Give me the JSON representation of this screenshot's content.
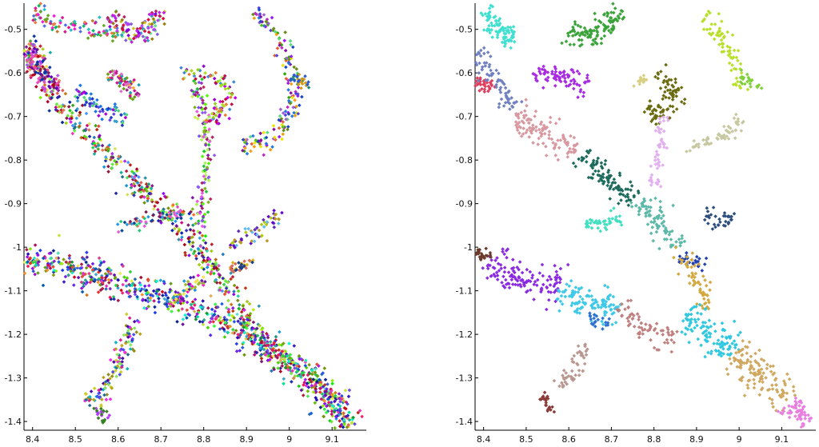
{
  "chart_data": [
    {
      "type": "scatter",
      "title": "",
      "xlabel": "",
      "ylabel": "",
      "xlim": [
        8.38,
        9.18
      ],
      "ylim": [
        -1.42,
        -0.44
      ],
      "x_ticks": [
        8.4,
        8.5,
        8.6,
        8.7,
        8.8,
        8.9,
        9.0,
        9.1
      ],
      "x_tick_labels": [
        "8.4",
        "8.5",
        "8.6",
        "8.7",
        "8.8",
        "8.9",
        "9",
        "9.1"
      ],
      "y_ticks": [
        -0.5,
        -0.6,
        -0.7,
        -0.8,
        -0.9,
        -1.0,
        -1.1,
        -1.2,
        -1.3,
        -1.4
      ],
      "y_tick_labels": [
        "-0.5",
        "-0.6",
        "-0.7",
        "-0.8",
        "-0.9",
        "-1",
        "-1.1",
        "-1.2",
        "-1.3",
        "-1.4"
      ],
      "grid": false,
      "legend": "none",
      "marker": "diamond",
      "coloring": "many small clusters, random distinct colors",
      "point_count": 2600,
      "structure_paths": [
        {
          "points": [
            [
              8.38,
              -0.52
            ],
            [
              8.45,
              -0.66
            ],
            [
              8.55,
              -0.76
            ],
            [
              8.65,
              -0.86
            ],
            [
              8.74,
              -0.94
            ],
            [
              8.8,
              -1.02
            ],
            [
              8.86,
              -1.1
            ],
            [
              8.9,
              -1.18
            ],
            [
              8.97,
              -1.25
            ],
            [
              9.05,
              -1.3
            ],
            [
              9.1,
              -1.36
            ],
            [
              9.14,
              -1.41
            ]
          ],
          "width": 0.014,
          "weight": 3.0
        },
        {
          "points": [
            [
              8.38,
              -1.03
            ],
            [
              8.5,
              -1.05
            ],
            [
              8.62,
              -1.09
            ],
            [
              8.72,
              -1.12
            ],
            [
              8.82,
              -1.16
            ],
            [
              8.92,
              -1.21
            ],
            [
              9.0,
              -1.26
            ],
            [
              9.08,
              -1.33
            ],
            [
              9.15,
              -1.41
            ]
          ],
          "width": 0.018,
          "weight": 3.0
        },
        {
          "points": [
            [
              8.38,
              -0.54
            ],
            [
              8.42,
              -0.6
            ],
            [
              8.46,
              -0.64
            ]
          ],
          "width": 0.012,
          "weight": 0.5
        },
        {
          "points": [
            [
              8.4,
              -0.46
            ],
            [
              8.46,
              -0.49
            ],
            [
              8.55,
              -0.5
            ],
            [
              8.6,
              -0.51
            ]
          ],
          "width": 0.01,
          "weight": 0.4
        },
        {
          "points": [
            [
              8.58,
              -0.47
            ],
            [
              8.62,
              -0.5
            ],
            [
              8.65,
              -0.52
            ],
            [
              8.7,
              -0.46
            ]
          ],
          "width": 0.012,
          "weight": 0.5
        },
        {
          "points": [
            [
              8.78,
              -0.61
            ],
            [
              8.8,
              -0.7
            ],
            [
              8.81,
              -0.8
            ],
            [
              8.8,
              -0.88
            ],
            [
              8.79,
              -0.96
            ]
          ],
          "width": 0.008,
          "weight": 0.6
        },
        {
          "points": [
            [
              8.75,
              -0.6
            ],
            [
              8.82,
              -0.6
            ],
            [
              8.86,
              -0.64
            ],
            [
              8.84,
              -0.7
            ],
            [
              8.8,
              -0.7
            ]
          ],
          "width": 0.01,
          "weight": 0.4
        },
        {
          "points": [
            [
              8.92,
              -0.46
            ],
            [
              8.97,
              -0.5
            ],
            [
              9.0,
              -0.58
            ],
            [
              9.01,
              -0.66
            ],
            [
              8.99,
              -0.72
            ],
            [
              8.96,
              -0.75
            ],
            [
              8.89,
              -0.77
            ]
          ],
          "width": 0.01,
          "weight": 0.7
        },
        {
          "points": [
            [
              9.0,
              -0.61
            ],
            [
              9.05,
              -0.63
            ]
          ],
          "width": 0.006,
          "weight": 0.15
        },
        {
          "points": [
            [
              8.58,
              -0.6
            ],
            [
              8.62,
              -0.62
            ],
            [
              8.64,
              -0.66
            ]
          ],
          "width": 0.008,
          "weight": 0.3
        },
        {
          "points": [
            [
              8.5,
              -0.64
            ],
            [
              8.55,
              -0.68
            ],
            [
              8.62,
              -0.7
            ]
          ],
          "width": 0.01,
          "weight": 0.3
        },
        {
          "points": [
            [
              8.6,
              -0.96
            ],
            [
              8.65,
              -0.94
            ],
            [
              8.72,
              -0.92
            ],
            [
              8.78,
              -0.93
            ]
          ],
          "width": 0.008,
          "weight": 0.3
        },
        {
          "points": [
            [
              8.86,
              -1.0
            ],
            [
              8.9,
              -0.98
            ],
            [
              8.95,
              -0.95
            ],
            [
              8.98,
              -0.92
            ]
          ],
          "width": 0.008,
          "weight": 0.25
        },
        {
          "points": [
            [
              8.86,
              -1.05
            ],
            [
              8.9,
              -1.04
            ],
            [
              8.92,
              -1.03
            ]
          ],
          "width": 0.006,
          "weight": 0.15
        },
        {
          "points": [
            [
              8.72,
              -1.13
            ],
            [
              8.76,
              -1.1
            ],
            [
              8.8,
              -1.07
            ]
          ],
          "width": 0.008,
          "weight": 0.25
        },
        {
          "points": [
            [
              8.64,
              -1.16
            ],
            [
              8.62,
              -1.22
            ],
            [
              8.6,
              -1.28
            ],
            [
              8.56,
              -1.34
            ],
            [
              8.52,
              -1.35
            ]
          ],
          "width": 0.01,
          "weight": 0.5
        },
        {
          "points": [
            [
              8.55,
              -1.37
            ],
            [
              8.57,
              -1.4
            ]
          ],
          "width": 0.005,
          "weight": 0.1
        }
      ]
    },
    {
      "type": "scatter",
      "title": "",
      "xlabel": "",
      "ylabel": "",
      "xlim": [
        8.38,
        9.18
      ],
      "ylim": [
        -1.42,
        -0.44
      ],
      "x_ticks": [
        8.4,
        8.5,
        8.6,
        8.7,
        8.8,
        8.9,
        9.0,
        9.1
      ],
      "x_tick_labels": [
        "8.4",
        "8.5",
        "8.6",
        "8.7",
        "8.8",
        "8.9",
        "9",
        "9.1"
      ],
      "y_ticks": [
        -0.5,
        -0.6,
        -0.7,
        -0.8,
        -0.9,
        -1.0,
        -1.1,
        -1.2,
        -1.3,
        -1.4
      ],
      "y_tick_labels": [
        "-0.5",
        "-0.6",
        "-0.7",
        "-0.8",
        "-0.9",
        "-1",
        "-1.1",
        "-1.2",
        "-1.3",
        "-1.4"
      ],
      "grid": false,
      "legend": "none",
      "marker": "diamond",
      "coloring": "few large clusters",
      "clusters": [
        {
          "color": "#40e0d0",
          "points": [
            [
              8.4,
              -0.46
            ],
            [
              8.43,
              -0.5
            ],
            [
              8.48,
              -0.53
            ]
          ],
          "width": 0.012,
          "weight": 0.6
        },
        {
          "color": "#3aa33a",
          "points": [
            [
              8.6,
              -0.5
            ],
            [
              8.64,
              -0.52
            ],
            [
              8.68,
              -0.5
            ],
            [
              8.72,
              -0.46
            ]
          ],
          "width": 0.014,
          "weight": 0.8
        },
        {
          "color": "#b8e02a",
          "points": [
            [
              8.92,
              -0.46
            ],
            [
              8.96,
              -0.52
            ],
            [
              8.99,
              -0.58
            ],
            [
              9.0,
              -0.64
            ]
          ],
          "width": 0.01,
          "weight": 0.5
        },
        {
          "color": "#7fd03a",
          "points": [
            [
              9.0,
              -0.61
            ],
            [
              9.05,
              -0.63
            ]
          ],
          "width": 0.007,
          "weight": 0.15
        },
        {
          "color": "#c7c7a0",
          "points": [
            [
              9.0,
              -0.7
            ],
            [
              8.98,
              -0.74
            ],
            [
              8.93,
              -0.76
            ],
            [
              8.88,
              -0.77
            ]
          ],
          "width": 0.008,
          "weight": 0.4
        },
        {
          "color": "#6b6b10",
          "points": [
            [
              8.8,
              -0.6
            ],
            [
              8.83,
              -0.61
            ],
            [
              8.85,
              -0.65
            ],
            [
              8.82,
              -0.7
            ],
            [
              8.78,
              -0.68
            ]
          ],
          "width": 0.012,
          "weight": 0.6
        },
        {
          "color": "#d8d080",
          "points": [
            [
              8.76,
              -0.61
            ],
            [
              8.78,
              -0.62
            ]
          ],
          "width": 0.006,
          "weight": 0.1
        },
        {
          "color": "#e2b0f0",
          "points": [
            [
              8.82,
              -0.7
            ],
            [
              8.81,
              -0.8
            ],
            [
              8.8,
              -0.86
            ]
          ],
          "width": 0.007,
          "weight": 0.35
        },
        {
          "color": "#a82be2",
          "points": [
            [
              8.52,
              -0.61
            ],
            [
              8.58,
              -0.6
            ],
            [
              8.64,
              -0.63
            ]
          ],
          "width": 0.012,
          "weight": 0.6
        },
        {
          "color": "#e04060",
          "points": [
            [
              8.38,
              -0.62
            ],
            [
              8.42,
              -0.63
            ]
          ],
          "width": 0.008,
          "weight": 0.25
        },
        {
          "color": "#7080c0",
          "points": [
            [
              8.38,
              -0.55
            ],
            [
              8.43,
              -0.62
            ],
            [
              8.47,
              -0.68
            ]
          ],
          "width": 0.012,
          "weight": 0.5
        },
        {
          "color": "#d898a0",
          "points": [
            [
              8.47,
              -0.7
            ],
            [
              8.55,
              -0.74
            ],
            [
              8.62,
              -0.78
            ]
          ],
          "width": 0.016,
          "weight": 0.8
        },
        {
          "color": "#1d6b5c",
          "points": [
            [
              8.63,
              -0.79
            ],
            [
              8.7,
              -0.85
            ],
            [
              8.76,
              -0.89
            ]
          ],
          "width": 0.014,
          "weight": 0.7
        },
        {
          "color": "#5cb8a8",
          "points": [
            [
              8.76,
              -0.89
            ],
            [
              8.82,
              -0.95
            ],
            [
              8.86,
              -1.0
            ]
          ],
          "width": 0.014,
          "weight": 0.6
        },
        {
          "color": "#40e0c0",
          "points": [
            [
              8.64,
              -0.95
            ],
            [
              8.72,
              -0.93
            ]
          ],
          "width": 0.01,
          "weight": 0.3
        },
        {
          "color": "#2d4d7d",
          "points": [
            [
              8.92,
              -0.92
            ],
            [
              8.96,
              -0.95
            ],
            [
              8.98,
              -0.92
            ]
          ],
          "width": 0.008,
          "weight": 0.25
        },
        {
          "color": "#2040b0",
          "points": [
            [
              8.86,
              -1.02
            ],
            [
              8.9,
              -1.04
            ],
            [
              8.92,
              -1.03
            ]
          ],
          "width": 0.007,
          "weight": 0.2
        },
        {
          "color": "#d4a840",
          "points": [
            [
              8.86,
              -1.0
            ],
            [
              8.9,
              -1.07
            ],
            [
              8.93,
              -1.14
            ]
          ],
          "width": 0.012,
          "weight": 0.4
        },
        {
          "color": "#8a2be2",
          "points": [
            [
              8.4,
              -1.04
            ],
            [
              8.5,
              -1.07
            ],
            [
              8.58,
              -1.1
            ]
          ],
          "width": 0.02,
          "weight": 0.9
        },
        {
          "color": "#6b3a2a",
          "points": [
            [
              8.38,
              -1.0
            ],
            [
              8.41,
              -1.03
            ]
          ],
          "width": 0.008,
          "weight": 0.2
        },
        {
          "color": "#40c8e8",
          "points": [
            [
              8.58,
              -1.1
            ],
            [
              8.65,
              -1.13
            ],
            [
              8.72,
              -1.14
            ]
          ],
          "width": 0.018,
          "weight": 0.8
        },
        {
          "color": "#c08080",
          "points": [
            [
              8.72,
              -1.13
            ],
            [
              8.76,
              -1.18
            ],
            [
              8.8,
              -1.2
            ],
            [
              8.85,
              -1.2
            ]
          ],
          "width": 0.012,
          "weight": 0.5
        },
        {
          "color": "#3070d0",
          "points": [
            [
              8.65,
              -1.16
            ],
            [
              8.69,
              -1.18
            ]
          ],
          "width": 0.007,
          "weight": 0.15
        },
        {
          "color": "#30c8e0",
          "points": [
            [
              8.87,
              -1.16
            ],
            [
              8.94,
              -1.2
            ],
            [
              8.99,
              -1.24
            ]
          ],
          "width": 0.02,
          "weight": 0.8
        },
        {
          "color": "#d0a860",
          "points": [
            [
              8.99,
              -1.24
            ],
            [
              9.06,
              -1.3
            ],
            [
              9.12,
              -1.36
            ]
          ],
          "width": 0.022,
          "weight": 0.9
        },
        {
          "color": "#e87ee0",
          "points": [
            [
              9.12,
              -1.36
            ],
            [
              9.16,
              -1.41
            ]
          ],
          "width": 0.016,
          "weight": 0.4
        },
        {
          "color": "#b89890",
          "points": [
            [
              8.64,
              -1.22
            ],
            [
              8.62,
              -1.28
            ],
            [
              8.58,
              -1.32
            ]
          ],
          "width": 0.01,
          "weight": 0.35
        },
        {
          "color": "#8b3a3a",
          "points": [
            [
              8.54,
              -1.34
            ],
            [
              8.56,
              -1.38
            ]
          ],
          "width": 0.006,
          "weight": 0.15
        }
      ]
    }
  ]
}
